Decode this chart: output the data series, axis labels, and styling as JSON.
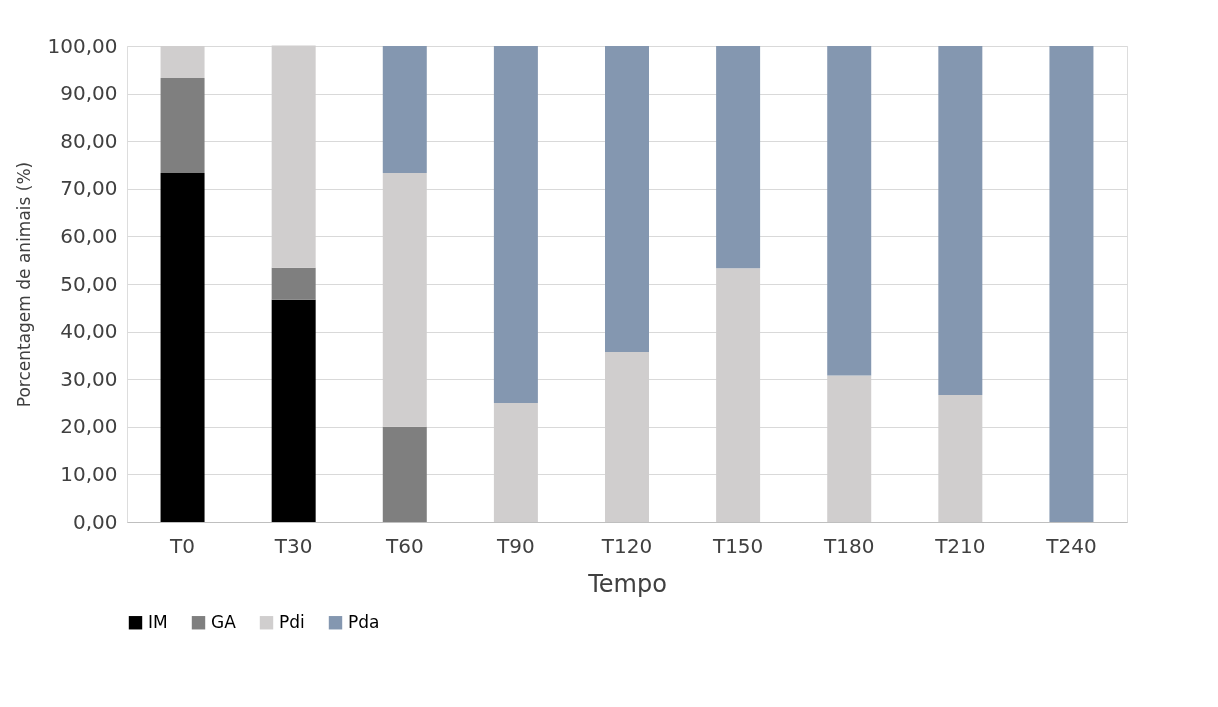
{
  "chart_data": {
    "type": "bar",
    "stacked": true,
    "xlabel": "Tempo",
    "ylabel": "Porcentagem de animais (%)",
    "categories": [
      "T0",
      "T30",
      "T60",
      "T90",
      "T120",
      "T150",
      "T180",
      "T210",
      "T240"
    ],
    "series": [
      {
        "name": "IM",
        "color": "#000000",
        "values": [
          73.3,
          46.7,
          null,
          null,
          null,
          null,
          null,
          null,
          null
        ]
      },
      {
        "name": "GA",
        "color": "#7f7f7f",
        "values": [
          20.0,
          6.7,
          20.0,
          null,
          null,
          null,
          null,
          null,
          null
        ]
      },
      {
        "name": "Pdi",
        "color": "#d0cece",
        "values": [
          6.7,
          46.7,
          53.3,
          25.0,
          35.7,
          53.3,
          30.8,
          26.7,
          null
        ]
      },
      {
        "name": "Pda",
        "color": "#8497b0",
        "values": [
          null,
          null,
          26.7,
          75.0,
          64.3,
          46.7,
          69.2,
          73.3,
          100.0
        ]
      }
    ],
    "ylim": [
      0,
      100
    ],
    "yticks": [
      {
        "value": 0,
        "label": "0,00"
      },
      {
        "value": 10,
        "label": "10,00"
      },
      {
        "value": 20,
        "label": "20,00"
      },
      {
        "value": 30,
        "label": "30,00"
      },
      {
        "value": 40,
        "label": "40,00"
      },
      {
        "value": 50,
        "label": "50,00"
      },
      {
        "value": 60,
        "label": "60,00"
      },
      {
        "value": 70,
        "label": "70,00"
      },
      {
        "value": 80,
        "label": "80,00"
      },
      {
        "value": 90,
        "label": "90,00"
      },
      {
        "value": 100,
        "label": "100,00"
      }
    ],
    "grid": "y",
    "legend": "bottom"
  }
}
